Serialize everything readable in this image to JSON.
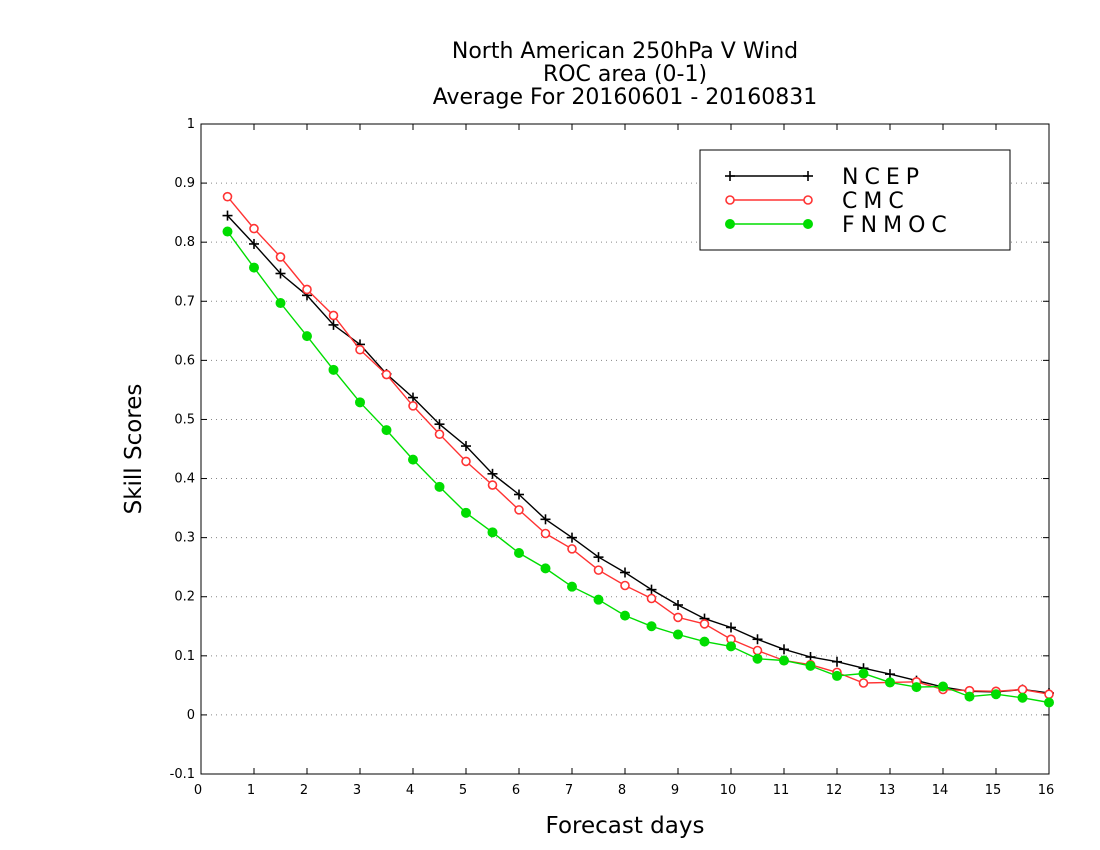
{
  "chart_data": {
    "type": "line",
    "title": [
      "North American 250hPa V Wind",
      "ROC area (0-1)",
      "Average For 20160601 - 20160831"
    ],
    "xlabel": "Forecast days",
    "ylabel": "Skill Scores",
    "xlim": [
      0,
      16
    ],
    "ylim": [
      -0.1,
      1
    ],
    "xticks": [
      0,
      1,
      2,
      3,
      4,
      5,
      6,
      7,
      8,
      9,
      10,
      11,
      12,
      13,
      14,
      15,
      16
    ],
    "yticks": [
      -0.1,
      0,
      0.1,
      0.2,
      0.3,
      0.4,
      0.5,
      0.6,
      0.7,
      0.8,
      0.9,
      1
    ],
    "ytick_labels": [
      "-0.1",
      "0",
      "0.1",
      "0.2",
      "0.3",
      "0.4",
      "0.5",
      "0.6",
      "0.7",
      "0.8",
      "0.9",
      "1"
    ],
    "grid": "horizontal dotted",
    "legend_position": "top-right",
    "x": [
      0.5,
      1,
      1.5,
      2,
      2.5,
      3,
      3.5,
      4,
      4.5,
      5,
      5.5,
      6,
      6.5,
      7,
      7.5,
      8,
      8.5,
      9,
      9.5,
      10,
      10.5,
      11,
      11.5,
      12,
      12.5,
      13,
      13.5,
      14,
      14.5,
      15,
      15.5,
      16
    ],
    "series": [
      {
        "name": "NCEP",
        "color": "#000000",
        "marker": "plus",
        "values": [
          0.845,
          0.797,
          0.747,
          0.71,
          0.66,
          0.627,
          0.577,
          0.537,
          0.492,
          0.455,
          0.408,
          0.373,
          0.331,
          0.3,
          0.267,
          0.241,
          0.212,
          0.186,
          0.163,
          0.148,
          0.128,
          0.111,
          0.098,
          0.09,
          0.079,
          0.069,
          0.058,
          0.047,
          0.04,
          0.039,
          0.043,
          0.037
        ]
      },
      {
        "name": "CMC",
        "color": "#ff3333",
        "marker": "open-circle",
        "values": [
          0.877,
          0.823,
          0.775,
          0.72,
          0.676,
          0.618,
          0.576,
          0.523,
          0.475,
          0.429,
          0.389,
          0.347,
          0.307,
          0.281,
          0.245,
          0.219,
          0.197,
          0.165,
          0.154,
          0.128,
          0.109,
          0.092,
          0.085,
          0.072,
          0.054,
          0.055,
          0.056,
          0.043,
          0.041,
          0.04,
          0.043,
          0.035
        ]
      },
      {
        "name": "FNMOC",
        "color": "#00dd00",
        "marker": "filled-circle",
        "values": [
          0.818,
          0.757,
          0.697,
          0.641,
          0.584,
          0.529,
          0.482,
          0.432,
          0.386,
          0.342,
          0.309,
          0.274,
          0.248,
          0.217,
          0.195,
          0.168,
          0.15,
          0.136,
          0.124,
          0.116,
          0.095,
          0.092,
          0.083,
          0.066,
          0.07,
          0.055,
          0.047,
          0.048,
          0.031,
          0.035,
          0.029,
          0.021
        ]
      }
    ]
  }
}
